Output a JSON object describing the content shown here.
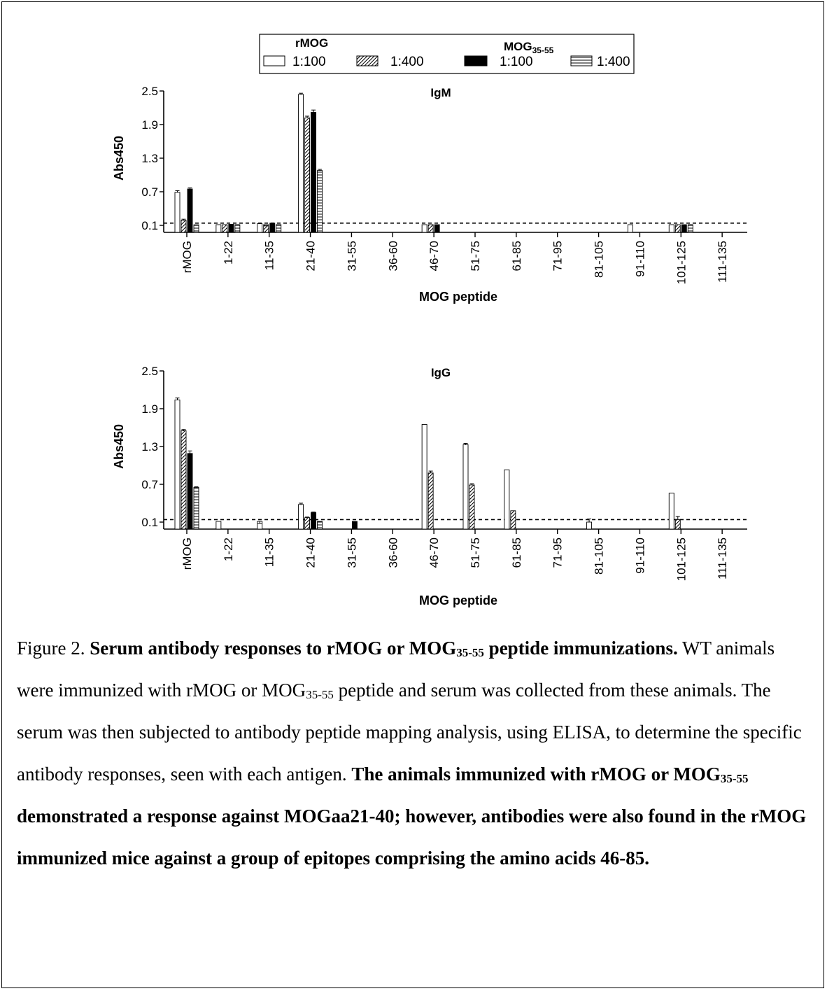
{
  "legend": {
    "group1": "rMOG",
    "group2": "MOG",
    "group2_sub": "35-55",
    "entries": [
      "1:100",
      "1:400",
      "1:100",
      "1:400"
    ]
  },
  "chart_data": [
    {
      "type": "bar",
      "title": "IgM",
      "xlabel": "MOG peptide",
      "ylabel": "Abs450",
      "ylim": [
        0.1,
        2.5
      ],
      "yticks": [
        "2.5",
        "1.9",
        "1.3",
        "0.7",
        "0.1"
      ],
      "baseline_dashed": 0.14,
      "categories": [
        "rMOG",
        "1-22",
        "11-35",
        "21-40",
        "31-55",
        "36-60",
        "46-70",
        "51-75",
        "61-85",
        "71-95",
        "81-105",
        "91-110",
        "101-125",
        "111-135"
      ],
      "series": [
        {
          "name": "rMOG 1:100",
          "pattern": "open",
          "values": [
            0.69,
            0.03,
            0.13,
            2.44,
            0.0,
            0.0,
            0.06,
            0.0,
            0.0,
            0.0,
            0.0,
            0.01,
            0.02,
            0.0
          ],
          "errors": [
            0.03,
            0,
            0,
            0.02,
            0,
            0,
            0,
            0,
            0,
            0,
            0,
            0,
            0,
            0
          ]
        },
        {
          "name": "rMOG 1:400",
          "pattern": "hatched",
          "values": [
            0.19,
            0.02,
            0.07,
            2.02,
            0.0,
            0.0,
            0.04,
            0.0,
            0.0,
            0.0,
            0.0,
            0.0,
            0.02,
            0.0
          ],
          "errors": [
            0.02,
            0,
            0.02,
            0.03,
            0,
            0,
            0,
            0,
            0,
            0,
            0,
            0,
            0,
            0
          ]
        },
        {
          "name": "MOG35-55 1:100",
          "pattern": "solid",
          "values": [
            0.75,
            0.12,
            0.14,
            2.12,
            0.0,
            0.0,
            0.05,
            0.0,
            0.0,
            0.0,
            0.0,
            0.0,
            0.04,
            0.0
          ],
          "errors": [
            0.02,
            0,
            0,
            0.04,
            0,
            0,
            0,
            0,
            0,
            0,
            0,
            0,
            0,
            0
          ]
        },
        {
          "name": "MOG35-55 1:400",
          "pattern": "horizontal",
          "values": [
            0.11,
            0.01,
            0.01,
            1.08,
            0.0,
            0.0,
            0.0,
            0.0,
            0.0,
            0.0,
            0.0,
            0.0,
            0.01,
            0.0
          ],
          "errors": [
            0,
            0,
            0,
            0.02,
            0,
            0,
            0,
            0,
            0,
            0,
            0,
            0,
            0,
            0
          ]
        }
      ]
    },
    {
      "type": "bar",
      "title": "IgG",
      "xlabel": "MOG peptide",
      "ylabel": "Abs450",
      "ylim": [
        0.1,
        2.5
      ],
      "yticks": [
        "2.5",
        "1.9",
        "1.3",
        "0.7",
        "0.1"
      ],
      "baseline_dashed": 0.14,
      "categories": [
        "rMOG",
        "1-22",
        "11-35",
        "21-40",
        "31-55",
        "36-60",
        "46-70",
        "51-75",
        "61-85",
        "71-95",
        "81-105",
        "91-110",
        "101-125",
        "111-135"
      ],
      "series": [
        {
          "name": "rMOG 1:100",
          "pattern": "open",
          "values": [
            2.04,
            0.03,
            0.06,
            0.38,
            0.0,
            0.0,
            1.65,
            1.33,
            0.93,
            0.0,
            0.1,
            0.0,
            0.56,
            0.0
          ],
          "errors": [
            0.03,
            0,
            0.02,
            0.02,
            0,
            0,
            0,
            0.02,
            0,
            0,
            0.05,
            0,
            0,
            0
          ]
        },
        {
          "name": "rMOG 1:400",
          "pattern": "hatched",
          "values": [
            1.55,
            0.0,
            0.0,
            0.17,
            0.0,
            0.0,
            0.88,
            0.69,
            0.28,
            0.0,
            0.0,
            0.0,
            0.14,
            0.0
          ],
          "errors": [
            0.02,
            0,
            0,
            0.01,
            0,
            0,
            0.03,
            0.02,
            0,
            0,
            0,
            0,
            0.05,
            0
          ]
        },
        {
          "name": "MOG35-55 1:100",
          "pattern": "solid",
          "values": [
            1.19,
            0.0,
            0.0,
            0.25,
            0.08,
            0.0,
            0.0,
            0.0,
            0.0,
            0.0,
            0.0,
            0.0,
            0.0,
            0.0
          ],
          "errors": [
            0.04,
            0,
            0,
            0.01,
            0,
            0,
            0,
            0,
            0,
            0,
            0,
            0,
            0,
            0
          ]
        },
        {
          "name": "MOG35-55 1:400",
          "pattern": "horizontal",
          "values": [
            0.65,
            0.0,
            0.0,
            0.09,
            0.0,
            0.0,
            0.0,
            0.0,
            0.0,
            0.0,
            0.0,
            0.0,
            0.0,
            0.0
          ],
          "errors": [
            0.01,
            0,
            0,
            0,
            0,
            0,
            0,
            0,
            0,
            0,
            0,
            0,
            0,
            0
          ]
        }
      ]
    }
  ],
  "caption": {
    "label": "Figure 2.",
    "title_a": "Serum antibody responses to rMOG or MOG",
    "title_sub": "35-55",
    "title_b": " peptide immunizations.",
    "p1_a": "WT animals were immunized with rMOG or MOG",
    "p1_sub": "35-55",
    "p1_b": " peptide and serum was collected from these animals. The serum was then subjected to antibody peptide mapping analysis, using ELISA, to determine the specific antibody responses, seen with each antigen. ",
    "b2_a": "The animals immunized with rMOG or MOG",
    "b2_sub": "35-55",
    "b2_b": " demonstrated a response against MOGaa21-40; however, antibodies were also found in the rMOG immunized mice against a group of epitopes comprising the amino acids 46-85."
  }
}
